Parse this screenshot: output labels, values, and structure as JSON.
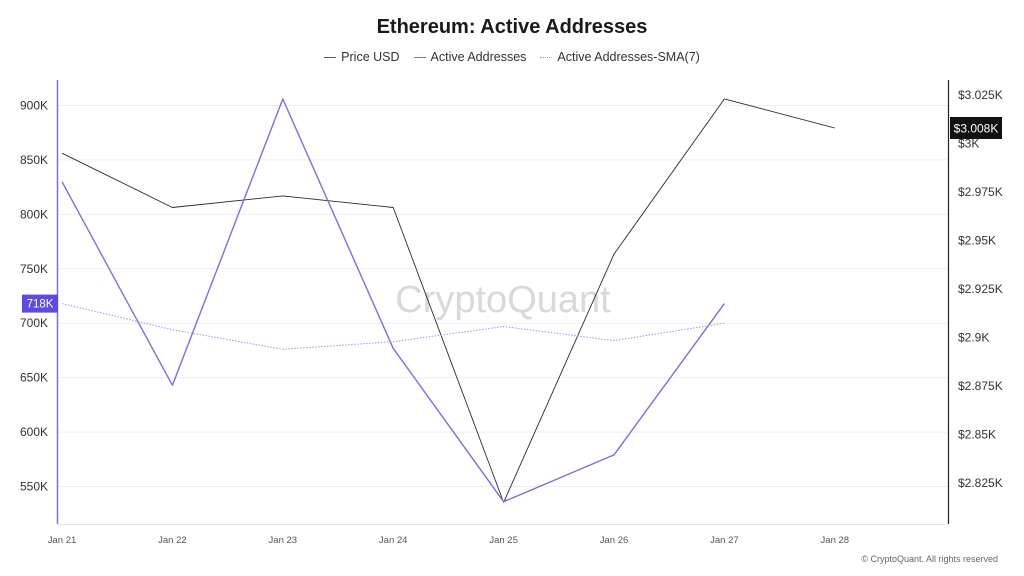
{
  "title": "Ethereum: Active Addresses",
  "legend": [
    {
      "name": "Price USD",
      "color": "#555555",
      "style": "solid"
    },
    {
      "name": "Active Addresses",
      "color": "#7b6fe0",
      "style": "solid"
    },
    {
      "name": "Active Addresses-SMA(7)",
      "color": "#9d95e8",
      "style": "dotted"
    }
  ],
  "watermark": "CryptoQuant",
  "copyright": "© CryptoQuant. All rights reserved",
  "left_badge": "718K",
  "right_badge": "$3.008K",
  "chart_data": {
    "type": "line",
    "categories": [
      "Jan 21",
      "Jan 22",
      "Jan 23",
      "Jan 24",
      "Jan 25",
      "Jan 26",
      "Jan 27",
      "Jan 28"
    ],
    "left_axis": {
      "ticks": [
        550000,
        600000,
        650000,
        700000,
        750000,
        800000,
        850000,
        900000
      ],
      "tick_labels": [
        "550K",
        "600K",
        "650K",
        "700K",
        "750K",
        "800K",
        "850K",
        "900K"
      ]
    },
    "right_axis": {
      "ticks": [
        2825,
        2850,
        2875,
        2900,
        2925,
        2950,
        2975,
        3000,
        3025
      ],
      "tick_labels": [
        "$2.825K",
        "$2.85K",
        "$2.875K",
        "$2.9K",
        "$2.925K",
        "$2.95K",
        "$2.975K",
        "$3K",
        "$3.025K"
      ]
    },
    "grid": true,
    "series": [
      {
        "name": "Price USD",
        "axis": "right",
        "color": "#2b2b2b",
        "style": "solid",
        "values": [
          2995,
          2967,
          2973,
          2967,
          2815,
          2943,
          3023,
          3008
        ]
      },
      {
        "name": "Active Addresses",
        "axis": "left",
        "color": "#7b6fe0",
        "style": "solid",
        "values": [
          830000,
          643000,
          906000,
          677000,
          536000,
          579000,
          718000,
          null
        ]
      },
      {
        "name": "Active Addresses-SMA(7)",
        "axis": "left",
        "color": "#9d95e8",
        "style": "dotted",
        "values": [
          718000,
          694000,
          676000,
          683000,
          697000,
          684000,
          700000,
          null
        ]
      }
    ]
  }
}
